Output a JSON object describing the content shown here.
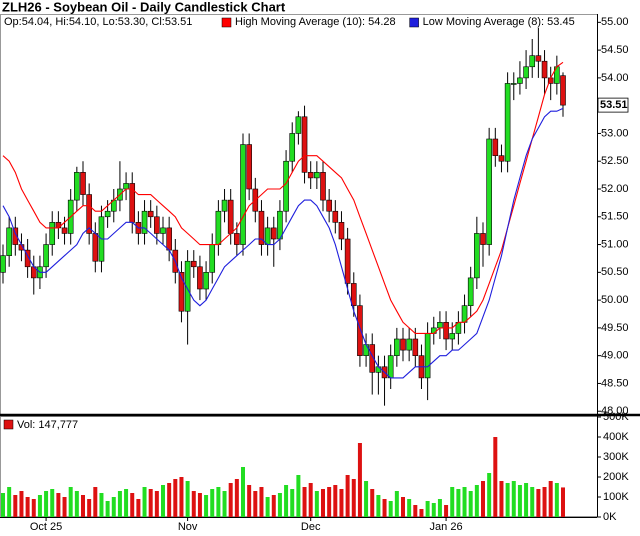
{
  "chart_data": {
    "type": "candlestick",
    "title": "ZLH26 - Soybean Oil - Daily Candlestick Chart",
    "ohlc_label": "Op:54.04, Hi:54.10, Lo:53.30, Cl:53.51",
    "last_price_label": "53.51",
    "up_color": "#22dd22",
    "down_color": "#dd1111",
    "categories": [
      null,
      null,
      null,
      null,
      null,
      null,
      null,
      "Oct 25",
      null,
      null,
      null,
      null,
      null,
      null,
      null,
      null,
      null,
      null,
      null,
      null,
      null,
      null,
      null,
      null,
      null,
      null,
      null,
      null,
      null,
      null,
      "Nov",
      null,
      null,
      null,
      null,
      null,
      null,
      null,
      null,
      null,
      null,
      null,
      null,
      null,
      null,
      null,
      null,
      null,
      null,
      null,
      "Dec",
      null,
      null,
      null,
      null,
      null,
      null,
      null,
      null,
      null,
      null,
      null,
      null,
      null,
      null,
      null,
      null,
      null,
      null,
      null,
      null,
      null,
      "Jan 26",
      null,
      null,
      null,
      null,
      null,
      null,
      null,
      null,
      null,
      null,
      null,
      null,
      null,
      null,
      null,
      null,
      null,
      null,
      null
    ],
    "open": [
      50.5,
      50.8,
      51.3,
      51.0,
      50.9,
      50.6,
      50.4,
      50.6,
      51.0,
      51.4,
      51.3,
      51.2,
      51.8,
      52.3,
      51.9,
      51.2,
      50.7,
      51.5,
      51.6,
      51.8,
      52.0,
      52.1,
      51.4,
      51.2,
      51.6,
      51.5,
      51.2,
      51.3,
      50.9,
      50.5,
      49.8,
      50.7,
      50.6,
      50.2,
      50.5,
      51.0,
      51.6,
      51.8,
      51.2,
      51.0,
      52.8,
      52.0,
      51.6,
      51.0,
      51.3,
      51.1,
      51.6,
      52.5,
      53.0,
      53.3,
      52.3,
      52.2,
      52.3,
      51.8,
      51.6,
      51.4,
      51.1,
      50.3,
      49.9,
      49.0,
      49.2,
      48.7,
      48.8,
      48.6,
      49.0,
      49.3,
      49.1,
      49.3,
      49.0,
      48.6,
      49.4,
      49.5,
      49.6,
      49.3,
      49.4,
      49.6,
      49.9,
      50.4,
      51.2,
      51.0,
      52.9,
      52.6,
      52.5,
      53.9,
      53.9,
      54.0,
      54.2,
      54.4,
      54.3,
      54.0,
      53.9,
      54.04
    ],
    "high": [
      51.0,
      51.5,
      51.5,
      51.2,
      51.1,
      50.8,
      50.8,
      51.2,
      51.6,
      51.6,
      51.5,
      52.0,
      52.4,
      52.5,
      52.1,
      51.4,
      51.7,
      51.8,
      52.0,
      52.5,
      52.3,
      52.3,
      51.6,
      51.8,
      51.8,
      51.7,
      51.5,
      51.5,
      51.1,
      50.7,
      50.9,
      50.9,
      50.8,
      50.7,
      51.2,
      51.8,
      52.0,
      52.0,
      51.4,
      53.0,
      53.0,
      52.2,
      51.8,
      51.5,
      51.5,
      51.8,
      52.7,
      53.2,
      53.4,
      53.5,
      52.5,
      52.5,
      52.5,
      52.0,
      51.8,
      51.6,
      51.3,
      50.5,
      50.1,
      49.4,
      49.4,
      49.0,
      49.0,
      49.2,
      49.5,
      49.5,
      49.5,
      49.5,
      49.2,
      49.6,
      49.7,
      49.8,
      49.8,
      49.6,
      49.8,
      50.1,
      50.6,
      51.5,
      51.4,
      53.1,
      53.1,
      52.8,
      54.1,
      54.1,
      54.3,
      54.5,
      54.7,
      54.9,
      54.5,
      54.2,
      54.4,
      54.1
    ],
    "low": [
      50.3,
      50.6,
      50.8,
      50.7,
      50.4,
      50.1,
      50.2,
      50.4,
      50.8,
      51.1,
      51.0,
      51.0,
      51.6,
      51.7,
      51.0,
      50.5,
      50.5,
      51.3,
      51.4,
      51.6,
      51.8,
      51.2,
      51.0,
      51.0,
      51.3,
      51.0,
      51.0,
      50.7,
      50.3,
      49.6,
      49.2,
      50.4,
      50.0,
      50.0,
      50.3,
      50.8,
      51.4,
      51.0,
      50.8,
      50.8,
      51.8,
      51.4,
      50.8,
      50.8,
      50.6,
      50.9,
      51.4,
      52.3,
      52.8,
      52.1,
      52.0,
      52.0,
      51.6,
      51.4,
      51.2,
      50.9,
      50.1,
      49.7,
      48.8,
      48.8,
      48.3,
      48.3,
      48.1,
      48.4,
      48.8,
      48.9,
      48.9,
      48.8,
      48.4,
      48.2,
      49.2,
      49.3,
      49.1,
      49.1,
      49.2,
      49.4,
      49.7,
      50.2,
      50.6,
      50.8,
      52.4,
      52.3,
      52.3,
      53.6,
      53.7,
      53.8,
      54.0,
      54.0,
      53.7,
      53.6,
      53.7,
      53.3
    ],
    "close": [
      50.8,
      51.3,
      51.0,
      50.9,
      50.6,
      50.4,
      50.6,
      51.0,
      51.4,
      51.3,
      51.2,
      51.8,
      52.3,
      51.9,
      51.2,
      50.7,
      51.5,
      51.6,
      51.8,
      52.0,
      52.1,
      51.4,
      51.2,
      51.6,
      51.5,
      51.2,
      51.3,
      50.9,
      50.5,
      49.8,
      50.7,
      50.6,
      50.2,
      50.5,
      51.0,
      51.6,
      51.8,
      51.2,
      51.0,
      52.8,
      52.0,
      51.6,
      51.0,
      51.3,
      51.1,
      51.6,
      52.5,
      53.0,
      53.3,
      52.3,
      52.2,
      52.3,
      51.8,
      51.6,
      51.4,
      51.1,
      50.3,
      49.9,
      49.0,
      49.2,
      48.7,
      48.8,
      48.6,
      49.0,
      49.3,
      49.1,
      49.3,
      49.0,
      48.6,
      49.4,
      49.5,
      49.6,
      49.3,
      49.4,
      49.6,
      49.9,
      50.4,
      51.2,
      51.0,
      52.9,
      52.6,
      52.5,
      53.9,
      53.9,
      54.0,
      54.2,
      54.4,
      54.3,
      54.0,
      53.9,
      54.2,
      53.51
    ],
    "series": [
      {
        "name": "High Moving Average (10): 54.28",
        "color": "#ff0000",
        "values": [
          52.6,
          52.5,
          52.3,
          52.0,
          51.8,
          51.6,
          51.4,
          51.3,
          51.3,
          51.3,
          51.4,
          51.5,
          51.6,
          51.7,
          51.7,
          51.6,
          51.6,
          51.7,
          51.8,
          51.9,
          52.0,
          52.0,
          51.9,
          51.9,
          51.9,
          51.8,
          51.7,
          51.6,
          51.5,
          51.3,
          51.2,
          51.1,
          51.0,
          51.0,
          51.0,
          51.0,
          51.1,
          51.2,
          51.3,
          51.5,
          51.7,
          51.8,
          51.9,
          52.0,
          52.0,
          52.0,
          52.1,
          52.3,
          52.5,
          52.6,
          52.6,
          52.6,
          52.5,
          52.4,
          52.3,
          52.2,
          52.0,
          51.8,
          51.5,
          51.2,
          50.9,
          50.6,
          50.3,
          50.0,
          49.8,
          49.6,
          49.5,
          49.4,
          49.4,
          49.4,
          49.4,
          49.5,
          49.5,
          49.5,
          49.6,
          49.6,
          49.7,
          49.8,
          50.0,
          50.3,
          50.6,
          50.9,
          51.3,
          51.7,
          52.1,
          52.5,
          52.9,
          53.3,
          53.7,
          54.0,
          54.2,
          54.28
        ]
      },
      {
        "name": "Low Moving Average (8): 53.45",
        "color": "#1f1fdd",
        "values": [
          51.7,
          51.5,
          51.2,
          51.0,
          50.8,
          50.6,
          50.5,
          50.5,
          50.6,
          50.7,
          50.8,
          50.9,
          51.0,
          51.2,
          51.3,
          51.2,
          51.1,
          51.1,
          51.2,
          51.3,
          51.4,
          51.4,
          51.3,
          51.3,
          51.2,
          51.1,
          51.0,
          50.9,
          50.7,
          50.4,
          50.2,
          50.0,
          49.9,
          50.0,
          50.2,
          50.4,
          50.6,
          50.7,
          50.8,
          50.9,
          51.0,
          51.1,
          51.1,
          51.0,
          51.0,
          51.1,
          51.3,
          51.5,
          51.7,
          51.8,
          51.8,
          51.7,
          51.5,
          51.3,
          51.0,
          50.6,
          50.2,
          49.8,
          49.5,
          49.2,
          49.0,
          48.8,
          48.7,
          48.6,
          48.6,
          48.6,
          48.7,
          48.8,
          48.8,
          48.8,
          48.9,
          49.0,
          49.0,
          49.1,
          49.1,
          49.2,
          49.3,
          49.4,
          49.7,
          50.0,
          50.4,
          50.8,
          51.3,
          51.8,
          52.2,
          52.6,
          52.9,
          53.1,
          53.3,
          53.4,
          53.4,
          53.45
        ]
      }
    ],
    "ylim": [
      47.95,
      55.15
    ],
    "yticks": [
      {
        "value": 48,
        "label": "48.00"
      },
      {
        "value": 48.5,
        "label": "48.50"
      },
      {
        "value": 49,
        "label": "49.00"
      },
      {
        "value": 49.5,
        "label": "49.50"
      },
      {
        "value": 50,
        "label": "50.00"
      },
      {
        "value": 50.5,
        "label": "50.50"
      },
      {
        "value": 51,
        "label": "51.00"
      },
      {
        "value": 51.5,
        "label": "51.50"
      },
      {
        "value": 52,
        "label": "52.00"
      },
      {
        "value": 52.5,
        "label": "52.50"
      },
      {
        "value": 53,
        "label": "53.00"
      },
      {
        "value": 53.5,
        "label": "53.50"
      },
      {
        "value": 54,
        "label": "54.00"
      },
      {
        "value": 54.5,
        "label": "54.50"
      },
      {
        "value": 55,
        "label": "55.00"
      }
    ],
    "volume": {
      "label": "Vol: 147,777",
      "values": [
        120000,
        150000,
        110000,
        130000,
        100000,
        90000,
        110000,
        130000,
        140000,
        120000,
        100000,
        150000,
        130000,
        110000,
        90000,
        150000,
        120000,
        80000,
        100000,
        130000,
        140000,
        120000,
        90000,
        150000,
        140000,
        130000,
        160000,
        170000,
        190000,
        200000,
        180000,
        130000,
        120000,
        110000,
        140000,
        150000,
        130000,
        170000,
        190000,
        250000,
        160000,
        130000,
        150000,
        100000,
        110000,
        120000,
        160000,
        140000,
        210000,
        150000,
        170000,
        130000,
        140000,
        150000,
        160000,
        140000,
        210000,
        190000,
        370000,
        180000,
        140000,
        110000,
        90000,
        80000,
        130000,
        100000,
        90000,
        60000,
        40000,
        80000,
        70000,
        90000,
        60000,
        150000,
        140000,
        150000,
        130000,
        160000,
        180000,
        220000,
        400000,
        180000,
        170000,
        180000,
        160000,
        170000,
        150000,
        140000,
        150000,
        180000,
        170000,
        147777
      ],
      "ylim": [
        0,
        500000
      ],
      "yticks": [
        {
          "value": 0,
          "label": "0K"
        },
        {
          "value": 100000,
          "label": "100K"
        },
        {
          "value": 200000,
          "label": "200K"
        },
        {
          "value": 300000,
          "label": "300K"
        },
        {
          "value": 400000,
          "label": "400K"
        },
        {
          "value": 500000,
          "label": "500K"
        }
      ]
    }
  }
}
